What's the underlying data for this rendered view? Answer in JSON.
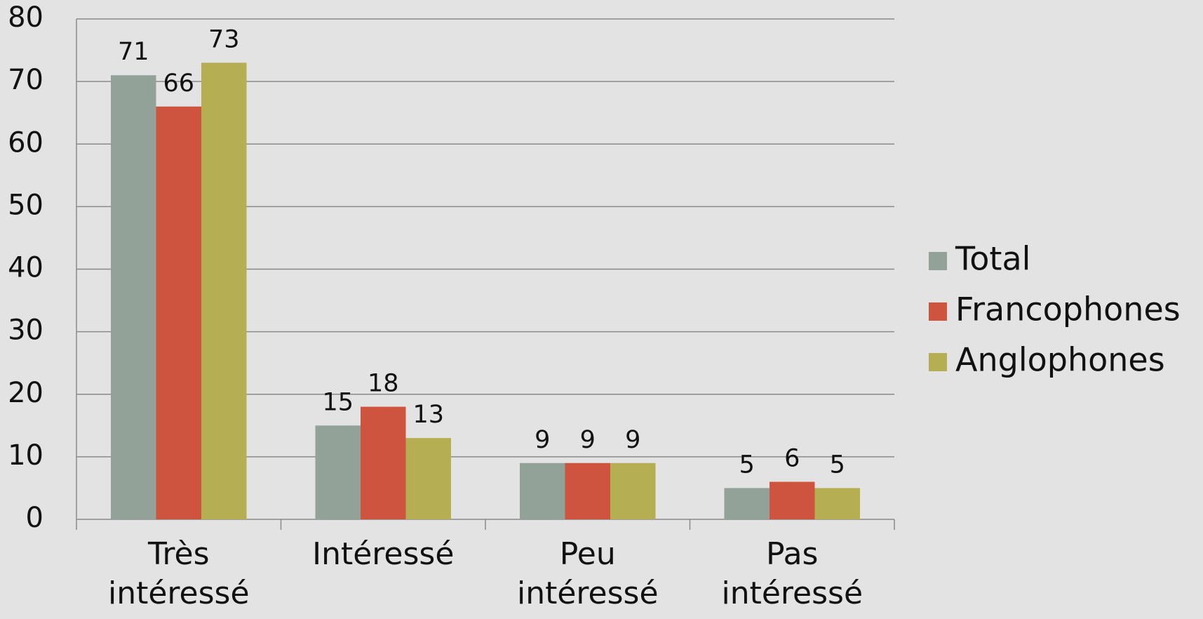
{
  "chart_data": {
    "type": "bar",
    "categories": [
      "Très intéressé",
      "Intéressé",
      "Peu intéressé",
      "Pas intéressé"
    ],
    "series": [
      {
        "name": "Total",
        "color": "#93a299",
        "values": [
          71,
          15,
          9,
          5
        ]
      },
      {
        "name": "Francophones",
        "color": "#cf543f",
        "values": [
          66,
          18,
          9,
          6
        ]
      },
      {
        "name": "Anglophones",
        "color": "#b5ae53",
        "values": [
          73,
          13,
          9,
          5
        ]
      }
    ],
    "ylim": [
      0,
      80
    ],
    "yticks": [
      0,
      10,
      20,
      30,
      40,
      50,
      60,
      70,
      80
    ],
    "grid": true,
    "legend": "right"
  }
}
